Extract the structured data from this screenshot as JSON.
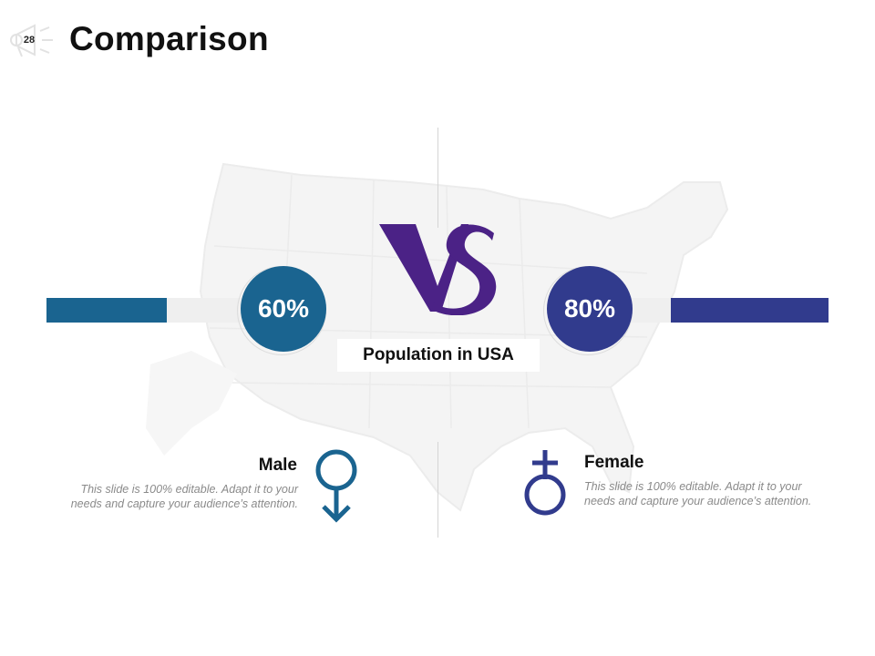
{
  "slide": {
    "page_number": "28",
    "title": "Comparison"
  },
  "comparison": {
    "caption": "Population in USA",
    "vs_label": "VS",
    "male": {
      "percent_label": "60%",
      "title": "Male",
      "description": "This slide is 100% editable. Adapt it to your needs and capture your audience’s attention.",
      "icon": "male-symbol-icon",
      "color": "#1a6490"
    },
    "female": {
      "percent_label": "80%",
      "title": "Female",
      "description": "This slide is 100% editable. Adapt it to your needs and capture your audience’s attention.",
      "icon": "female-symbol-icon",
      "color": "#313b8d"
    },
    "vs_color": "#4b2286",
    "background_image": "usa-map-watermark"
  }
}
